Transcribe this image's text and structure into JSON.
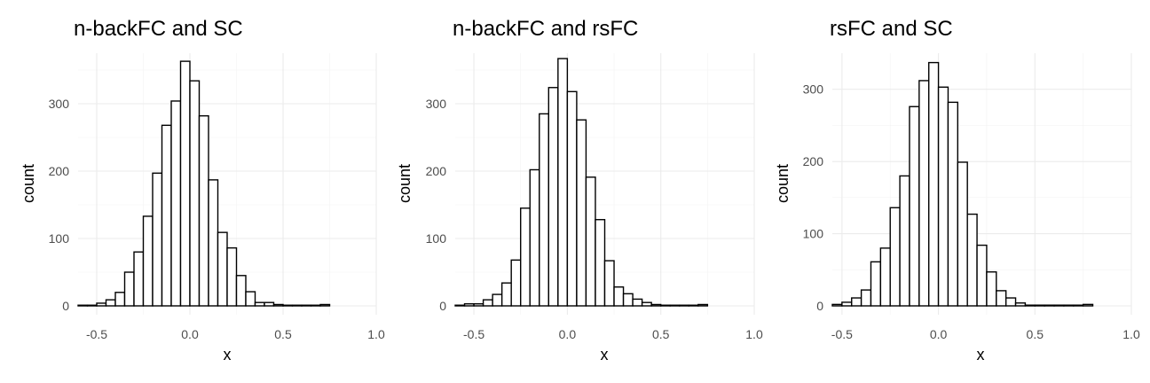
{
  "chart_data": [
    {
      "type": "bar",
      "title": "n-backFC and SC",
      "xlabel": "x",
      "ylabel": "count",
      "xlim": [
        -0.6,
        1.0
      ],
      "ylim": [
        0,
        375
      ],
      "xticks": [
        -0.5,
        0.0,
        0.5,
        1.0
      ],
      "xtick_labels": [
        "-0.5",
        "0.0",
        "0.5",
        "1.0"
      ],
      "yticks": [
        0,
        100,
        200,
        300
      ],
      "ytick_labels": [
        "0",
        "100",
        "200",
        "300"
      ],
      "grid": true,
      "bin_start": -0.6,
      "bin_width": 0.05,
      "values": [
        1,
        1,
        4,
        9,
        20,
        50,
        80,
        133,
        197,
        268,
        304,
        363,
        334,
        282,
        187,
        109,
        86,
        45,
        21,
        5,
        5,
        2,
        1,
        1,
        1,
        1,
        2
      ]
    },
    {
      "type": "bar",
      "title": "n-backFC and rsFC",
      "xlabel": "x",
      "ylabel": "count",
      "xlim": [
        -0.6,
        1.0
      ],
      "ylim": [
        0,
        375
      ],
      "xticks": [
        -0.5,
        0.0,
        0.5,
        1.0
      ],
      "xtick_labels": [
        "-0.5",
        "0.0",
        "0.5",
        "1.0"
      ],
      "yticks": [
        0,
        100,
        200,
        300
      ],
      "ytick_labels": [
        "0",
        "100",
        "200",
        "300"
      ],
      "grid": true,
      "bin_start": -0.6,
      "bin_width": 0.05,
      "values": [
        1,
        3,
        3,
        9,
        17,
        34,
        68,
        145,
        202,
        285,
        324,
        367,
        318,
        276,
        191,
        128,
        67,
        28,
        18,
        10,
        5,
        2,
        1,
        1,
        1,
        1,
        2
      ]
    },
    {
      "type": "bar",
      "title": "rsFC and SC",
      "xlabel": "x",
      "ylabel": "count",
      "xlim": [
        -0.55,
        1.0
      ],
      "ylim": [
        0,
        350
      ],
      "xticks": [
        -0.5,
        0.0,
        0.5,
        1.0
      ],
      "xtick_labels": [
        "-0.5",
        "0.0",
        "0.5",
        "1.0"
      ],
      "yticks": [
        0,
        100,
        200,
        300
      ],
      "ytick_labels": [
        "0",
        "100",
        "200",
        "300"
      ],
      "grid": true,
      "bin_start": -0.55,
      "bin_width": 0.05,
      "values": [
        2,
        5,
        11,
        22,
        61,
        80,
        136,
        180,
        276,
        312,
        337,
        303,
        282,
        199,
        127,
        84,
        47,
        21,
        11,
        4,
        1,
        1,
        1,
        1,
        1,
        1,
        2
      ]
    }
  ]
}
